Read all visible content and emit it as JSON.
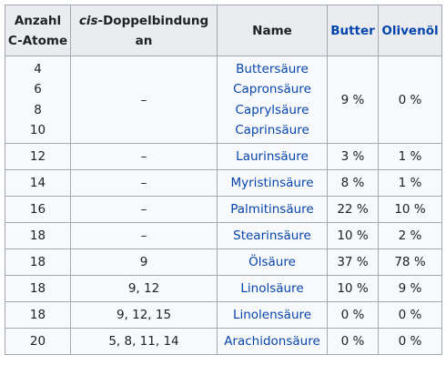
{
  "header": {
    "col1_line1": "Anzahl",
    "col1_line2": "C-Atome",
    "col2_italic": "cis",
    "col2_rest": "-Doppelbindung",
    "col2_line2": "an",
    "col3": "Name",
    "col4": "Butter",
    "col5": "Olivenöl"
  },
  "first_row": {
    "atoms": [
      "4",
      "6",
      "8",
      "10"
    ],
    "cis": "–",
    "names": [
      "Buttersäure",
      "Capronsäure",
      "Caprylsäure",
      "Caprinsäure"
    ],
    "butter": "9 %",
    "olive": "0 %"
  },
  "rows": [
    {
      "atoms": "12",
      "cis": "–",
      "name": "Laurinsäure",
      "butter": "3 %",
      "olive": "1 %"
    },
    {
      "atoms": "14",
      "cis": "–",
      "name": "Myristinsäure",
      "butter": "8 %",
      "olive": "1 %"
    },
    {
      "atoms": "16",
      "cis": "–",
      "name": "Palmitinsäure",
      "butter": "22 %",
      "olive": "10 %"
    },
    {
      "atoms": "18",
      "cis": "–",
      "name": "Stearinsäure",
      "butter": "10 %",
      "olive": "2 %"
    },
    {
      "atoms": "18",
      "cis": "9",
      "name": "Ölsäure",
      "butter": "37 %",
      "olive": "78 %"
    },
    {
      "atoms": "18",
      "cis": "9, 12",
      "name": "Linolsäure",
      "butter": "10 %",
      "olive": "9 %"
    },
    {
      "atoms": "18",
      "cis": "9, 12, 15",
      "name": "Linolensäure",
      "butter": "0 %",
      "olive": "0 %"
    },
    {
      "atoms": "20",
      "cis": "5, 8, 11, 14",
      "name": "Arachidonsäure",
      "butter": "0 %",
      "olive": "0 %"
    }
  ],
  "colors": {
    "link": "#0645ad",
    "header_bg": "#eaecf0",
    "cell_bg": "#f8f9fa",
    "border": "#a2a9b1"
  }
}
